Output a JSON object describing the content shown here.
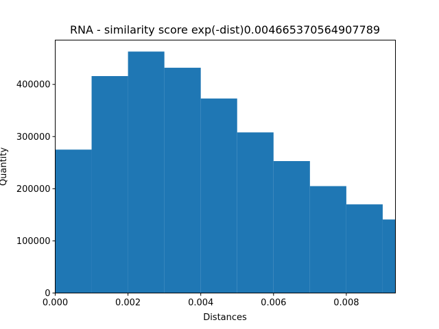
{
  "chart_data": {
    "type": "bar",
    "title": "RNA - similarity score exp(-dist)0.004665370564907789",
    "xlabel": "Distances",
    "ylabel": "Quantity",
    "bin_edges": [
      0.0,
      0.001,
      0.002,
      0.003,
      0.004,
      0.005,
      0.006,
      0.007,
      0.008,
      0.009,
      0.00935
    ],
    "values": [
      275000,
      416000,
      463000,
      432000,
      373000,
      308000,
      253000,
      205000,
      170000,
      141000
    ],
    "xlim": [
      0.0,
      0.00935
    ],
    "ylim": [
      0,
      485000
    ],
    "xticks": [
      0.0,
      0.002,
      0.004,
      0.006,
      0.008
    ],
    "xtick_labels": [
      "0.000",
      "0.002",
      "0.004",
      "0.006",
      "0.008"
    ],
    "yticks": [
      0,
      100000,
      200000,
      300000,
      400000
    ],
    "ytick_labels": [
      "0",
      "100000",
      "200000",
      "300000",
      "400000"
    ],
    "bar_color": "#1f77b4",
    "grid": false,
    "legend": "none"
  }
}
